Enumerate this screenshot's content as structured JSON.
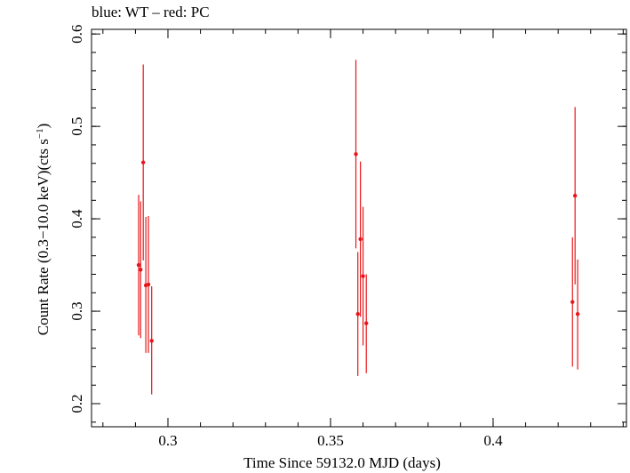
{
  "chart_data": {
    "type": "scatter",
    "title": "blue: WT – red: PC",
    "xlabel": "Time Since 59132.0 MJD (days)",
    "ylabel_main": "Count Rate (0.3−10.0 keV)(cts s",
    "ylabel_sup": "−1",
    "ylabel_end": ")",
    "xlim": [
      0.2765,
      0.441
    ],
    "ylim": [
      0.175,
      0.605
    ],
    "xticks": [
      0.3,
      0.35,
      0.4
    ],
    "xtick_labels": [
      "0.3",
      "0.35",
      "0.4"
    ],
    "yticks": [
      0.2,
      0.3,
      0.4,
      0.5,
      0.6
    ],
    "ytick_labels": [
      "0.2",
      "0.3",
      "0.4",
      "0.5",
      "0.6"
    ],
    "grid": false,
    "series": [
      {
        "color": "#e8161b",
        "points": [
          {
            "x": 0.291,
            "y": 0.35,
            "ylo": 0.274,
            "yhi": 0.426
          },
          {
            "x": 0.2916,
            "y": 0.345,
            "ylo": 0.271,
            "yhi": 0.419
          },
          {
            "x": 0.2924,
            "y": 0.461,
            "ylo": 0.355,
            "yhi": 0.567
          },
          {
            "x": 0.2932,
            "y": 0.328,
            "ylo": 0.255,
            "yhi": 0.402
          },
          {
            "x": 0.294,
            "y": 0.329,
            "ylo": 0.255,
            "yhi": 0.403
          },
          {
            "x": 0.295,
            "y": 0.268,
            "ylo": 0.21,
            "yhi": 0.327
          },
          {
            "x": 0.3578,
            "y": 0.47,
            "ylo": 0.368,
            "yhi": 0.572
          },
          {
            "x": 0.3584,
            "y": 0.297,
            "ylo": 0.23,
            "yhi": 0.364
          },
          {
            "x": 0.3592,
            "y": 0.378,
            "ylo": 0.294,
            "yhi": 0.462
          },
          {
            "x": 0.36,
            "y": 0.338,
            "ylo": 0.263,
            "yhi": 0.413
          },
          {
            "x": 0.361,
            "y": 0.287,
            "ylo": 0.233,
            "yhi": 0.34
          },
          {
            "x": 0.4244,
            "y": 0.31,
            "ylo": 0.24,
            "yhi": 0.38
          },
          {
            "x": 0.4252,
            "y": 0.425,
            "ylo": 0.329,
            "yhi": 0.521
          },
          {
            "x": 0.426,
            "y": 0.297,
            "ylo": 0.237,
            "yhi": 0.356
          }
        ]
      }
    ]
  }
}
